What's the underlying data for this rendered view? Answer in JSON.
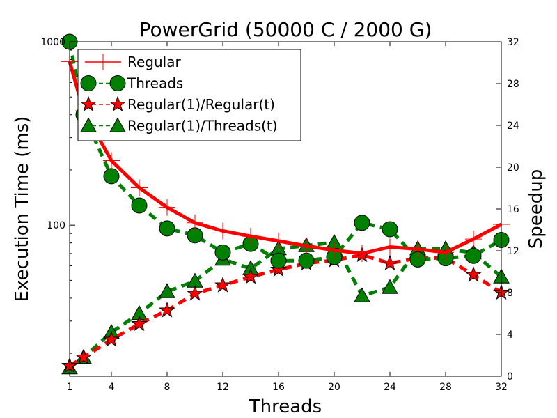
{
  "chart_data": {
    "type": "line",
    "title": "PowerGrid (50000 C / 2000 G)",
    "xlabel": "Threads",
    "ylabel_left": "Execution Time (ms)",
    "ylabel_right": "Speedup",
    "x_ticks": [
      "1",
      "4",
      "8",
      "12",
      "16",
      "20",
      "24",
      "28",
      "32"
    ],
    "y_left_ticks": [
      "100",
      "1000"
    ],
    "y_left_scale": "log",
    "y_left_range": [
      15,
      1000
    ],
    "y_right_ticks": [
      "0",
      "4",
      "8",
      "12",
      "16",
      "20",
      "24",
      "28",
      "32"
    ],
    "y_right_range": [
      0,
      32
    ],
    "x_range": [
      1,
      32
    ],
    "legend_position": "top-left",
    "series": [
      {
        "name": "Regular",
        "axis": "left",
        "color": "#ff0000",
        "line": "solid",
        "marker": "plus",
        "points": [
          [
            1,
            780
          ],
          [
            2,
            420
          ],
          [
            4,
            225
          ],
          [
            6,
            160
          ],
          [
            8,
            125
          ],
          [
            10,
            103
          ],
          [
            12,
            93
          ],
          [
            14,
            87
          ],
          [
            16,
            82
          ],
          [
            18,
            77
          ],
          [
            20,
            73
          ],
          [
            22,
            70
          ],
          [
            24,
            76
          ],
          [
            26,
            74
          ],
          [
            28,
            71
          ],
          [
            30,
            84
          ],
          [
            32,
            101
          ]
        ]
      },
      {
        "name": "Threads",
        "axis": "left",
        "color": "#008000",
        "line": "dashed",
        "marker": "circle",
        "points": [
          [
            1,
            1000
          ],
          [
            2,
            400
          ],
          [
            4,
            185
          ],
          [
            6,
            128
          ],
          [
            8,
            96
          ],
          [
            10,
            88
          ],
          [
            12,
            71
          ],
          [
            14,
            79
          ],
          [
            16,
            64
          ],
          [
            18,
            64
          ],
          [
            20,
            67
          ],
          [
            22,
            103
          ],
          [
            24,
            95
          ],
          [
            26,
            65
          ],
          [
            28,
            66
          ],
          [
            30,
            68
          ],
          [
            32,
            83
          ]
        ]
      },
      {
        "name": "Regular(1)/Regular(t)",
        "axis": "right",
        "color": "#ff0000",
        "line": "dashed",
        "marker": "star",
        "points": [
          [
            1,
            1
          ],
          [
            2,
            1.8
          ],
          [
            4,
            3.5
          ],
          [
            6,
            5
          ],
          [
            8,
            6.3
          ],
          [
            10,
            7.9
          ],
          [
            12,
            8.7
          ],
          [
            14,
            9.5
          ],
          [
            16,
            10.2
          ],
          [
            18,
            10.8
          ],
          [
            20,
            11.1
          ],
          [
            22,
            11.6
          ],
          [
            24,
            10.8
          ],
          [
            26,
            11.3
          ],
          [
            28,
            11.3
          ],
          [
            30,
            9.7
          ],
          [
            32,
            8
          ]
        ]
      },
      {
        "name": "Regular(1)/Threads(t)",
        "axis": "right",
        "color": "#008000",
        "line": "dashed",
        "marker": "triangle",
        "points": [
          [
            1,
            0.8
          ],
          [
            2,
            1.8
          ],
          [
            4,
            4.2
          ],
          [
            6,
            6
          ],
          [
            8,
            8.1
          ],
          [
            10,
            9.1
          ],
          [
            12,
            11.2
          ],
          [
            14,
            10.3
          ],
          [
            16,
            12.2
          ],
          [
            18,
            12.5
          ],
          [
            20,
            12.8
          ],
          [
            22,
            7.7
          ],
          [
            24,
            8.5
          ],
          [
            26,
            12.2
          ],
          [
            28,
            12.2
          ],
          [
            30,
            11.8
          ],
          [
            32,
            9.5
          ]
        ]
      }
    ]
  }
}
